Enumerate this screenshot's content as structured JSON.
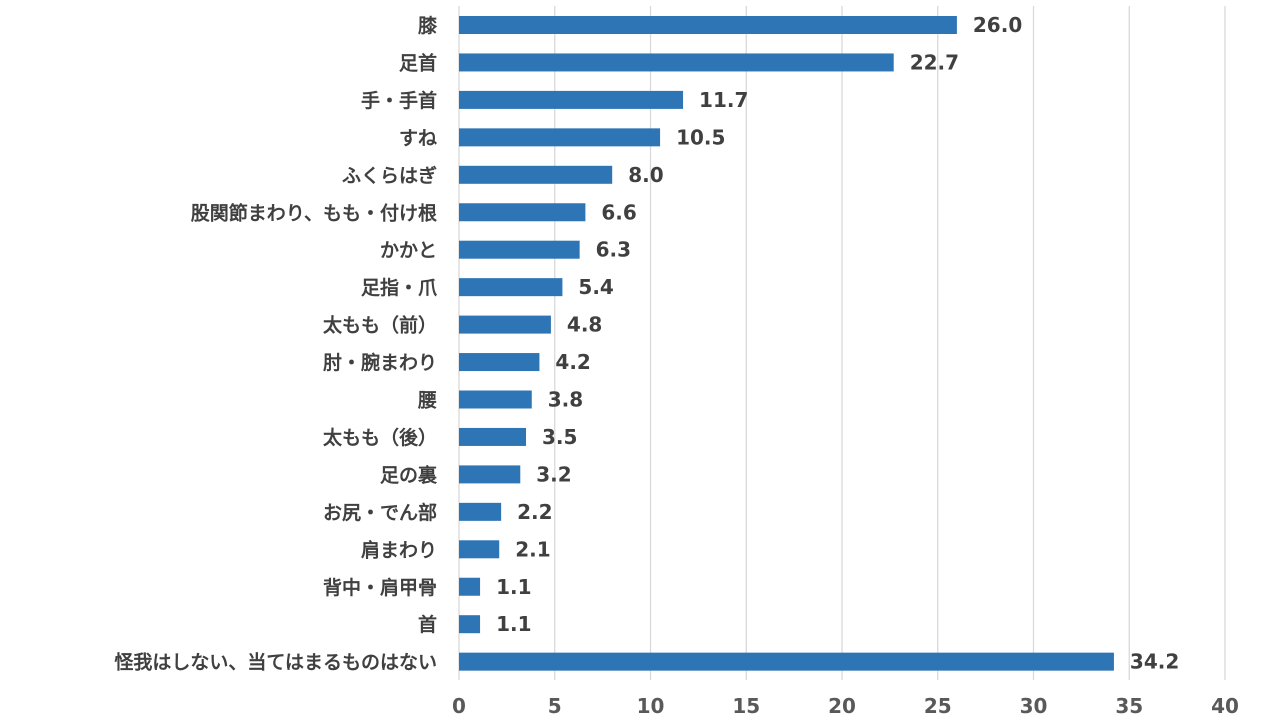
{
  "chart_data": {
    "type": "bar",
    "orientation": "horizontal",
    "categories": [
      "膝",
      "足首",
      "手・手首",
      "すね",
      "ふくらはぎ",
      "股関節まわり、もも・付け根",
      "かかと",
      "足指・爪",
      "太もも（前）",
      "肘・腕まわり",
      "腰",
      "太もも（後）",
      "足の裏",
      "お尻・でん部",
      "肩まわり",
      "背中・肩甲骨",
      "首",
      "怪我はしない、当てはまるものはない"
    ],
    "values": [
      26.0,
      22.7,
      11.7,
      10.5,
      8.0,
      6.6,
      6.3,
      5.4,
      4.8,
      4.2,
      3.8,
      3.5,
      3.2,
      2.2,
      2.1,
      1.1,
      1.1,
      34.2
    ],
    "data_labels": [
      "26.0",
      "22.7",
      "11.7",
      "10.5",
      "8.0",
      "6.6",
      "6.3",
      "5.4",
      "4.8",
      "4.2",
      "3.8",
      "3.5",
      "3.2",
      "2.2",
      "2.1",
      "1.1",
      "1.1",
      "34.2"
    ],
    "xlim": [
      0,
      40
    ],
    "x_ticks": [
      0,
      5,
      10,
      15,
      20,
      25,
      30,
      35,
      40
    ],
    "title": "",
    "xlabel": "",
    "ylabel": "",
    "grid": "vertical",
    "legend": "none",
    "bar_color": "#2e75b6",
    "text_color": "#404040",
    "grid_color": "#d9d9d9"
  }
}
